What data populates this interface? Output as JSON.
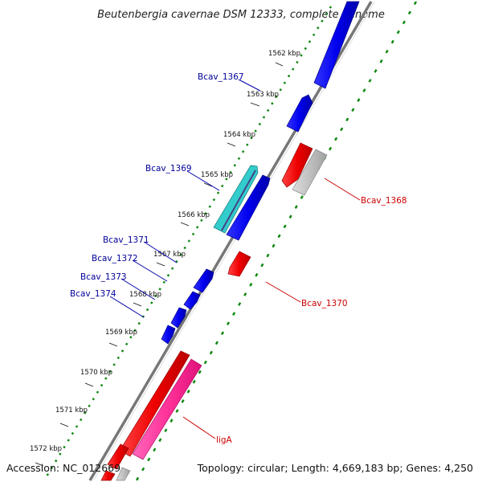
{
  "title": "Beutenbergia cavernae DSM 12333, complete genome",
  "accession": "Accession: NC_012669",
  "summary": "Topology: circular; Length: 4,669,183 bp; Genes: 4,250",
  "ticks": [
    "1562 kbp",
    "1563 kbp",
    "1564 kbp",
    "1565 kbp",
    "1566 kbp",
    "1567 kbp",
    "1568 kbp",
    "1569 kbp",
    "1570 kbp",
    "1571 kbp",
    "1572 kbp"
  ],
  "gene_labels": {
    "bcav_1367": "Bcav_1367",
    "bcav_1368": "Bcav_1368",
    "bcav_1369": "Bcav_1369",
    "bcav_1370": "Bcav_1370",
    "bcav_1371": "Bcav_1371",
    "bcav_1372": "Bcav_1372",
    "bcav_1373": "Bcav_1373",
    "bcav_1374": "Bcav_1374",
    "ligA": "ligA"
  },
  "colors": {
    "forward_gene": "#0000ee",
    "reverse_gene": "#ee0000",
    "rna_gene": "#ff3399",
    "other_gene": "#c0c0c0",
    "highlight_gene": "#33cccc",
    "backbone": "#888888",
    "gc_track": "#118811",
    "forward_label": "#000099",
    "reverse_label": "#cc0000"
  }
}
